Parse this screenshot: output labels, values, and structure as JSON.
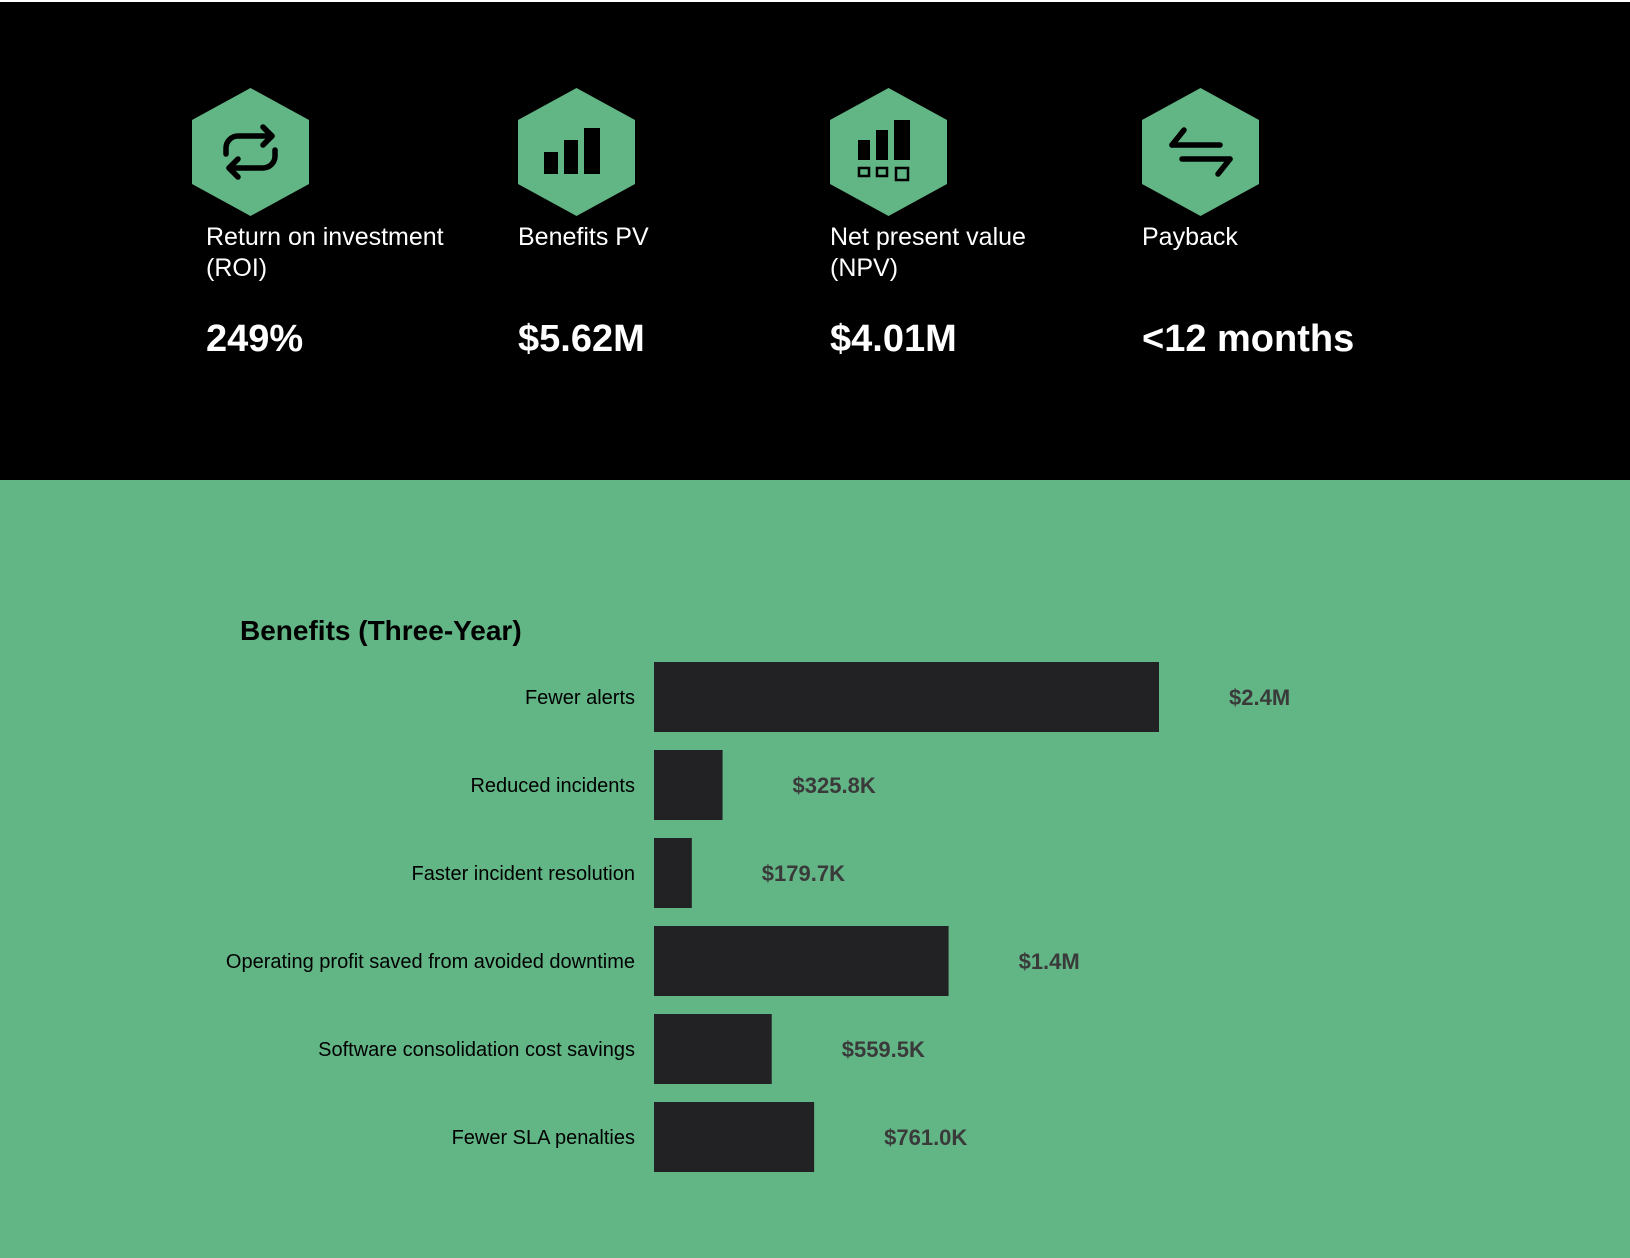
{
  "colors": {
    "top_background": "#000000",
    "bottom_background": "#62b585",
    "accent_green": "#62b585",
    "bar": "#222124",
    "text_light": "#ffffff",
    "value_text": "#3a3a3a"
  },
  "metrics": [
    {
      "icon": "repeat-cycle-icon",
      "label_line1": "Return on investment",
      "label_line2": "(ROI)",
      "value": "249%"
    },
    {
      "icon": "bar-chart-icon",
      "label_line1": "Benefits PV",
      "label_line2": "",
      "value": "$5.62M"
    },
    {
      "icon": "bar-chart-squares-icon",
      "label_line1": "Net present value",
      "label_line2": "(NPV)",
      "value": "$4.01M"
    },
    {
      "icon": "transfer-arrows-icon",
      "label_line1": "Payback",
      "label_line2": "",
      "value": "<12 months"
    }
  ],
  "chart_data": {
    "type": "bar",
    "orientation": "horizontal",
    "title": "Benefits (Three-Year)",
    "categories": [
      "Fewer alerts",
      "Reduced incidents",
      "Faster incident resolution",
      "Operating profit saved from avoided downtime",
      "Software consolidation cost savings",
      "Fewer SLA penalties"
    ],
    "values": [
      2.4,
      0.3258,
      0.1797,
      1.4,
      0.5595,
      0.761
    ],
    "value_labels": [
      "$2.4M",
      "$325.8K",
      "$179.7K",
      "$1.4M",
      "$559.5K",
      "$761.0K"
    ],
    "unit": "$M",
    "xlabel": "",
    "ylabel": "",
    "grid": false,
    "legend": "none"
  }
}
